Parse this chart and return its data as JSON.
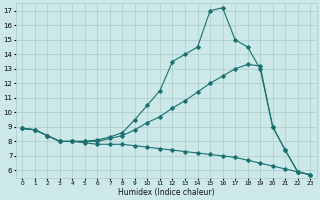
{
  "xlabel": "Humidex (Indice chaleur)",
  "bg_color": "#cce8e8",
  "grid_color": "#aacccc",
  "line_color": "#1a7070",
  "xlim": [
    -0.5,
    23.5
  ],
  "ylim": [
    5.5,
    17.5
  ],
  "xticks": [
    0,
    1,
    2,
    3,
    4,
    5,
    6,
    7,
    8,
    9,
    10,
    11,
    12,
    13,
    14,
    15,
    16,
    17,
    18,
    19,
    20,
    21,
    22,
    23
  ],
  "yticks": [
    6,
    7,
    8,
    9,
    10,
    11,
    12,
    13,
    14,
    15,
    16,
    17
  ],
  "series": [
    {
      "x": [
        0,
        1,
        2,
        3,
        4,
        5,
        6,
        7,
        8,
        9,
        10,
        11,
        12,
        13,
        14,
        15,
        16,
        17,
        18,
        19,
        20,
        21,
        22,
        23
      ],
      "y": [
        8.9,
        8.8,
        8.4,
        8.0,
        8.0,
        8.0,
        8.1,
        8.3,
        8.6,
        9.5,
        10.5,
        11.5,
        13.5,
        14.0,
        14.5,
        17.0,
        17.2,
        15.0,
        14.5,
        13.0,
        9.0,
        7.4,
        5.9,
        5.7
      ]
    },
    {
      "x": [
        0,
        1,
        2,
        3,
        4,
        5,
        6,
        7,
        8,
        9,
        10,
        11,
        12,
        13,
        14,
        15,
        16,
        17,
        18,
        19,
        20,
        21,
        22,
        23
      ],
      "y": [
        8.9,
        8.8,
        8.4,
        8.0,
        8.0,
        8.0,
        8.0,
        8.2,
        8.4,
        8.8,
        9.3,
        9.7,
        10.3,
        10.8,
        11.4,
        12.0,
        12.5,
        13.0,
        13.3,
        13.2,
        9.0,
        7.4,
        5.9,
        5.7
      ]
    },
    {
      "x": [
        0,
        1,
        2,
        3,
        4,
        5,
        6,
        7,
        8,
        9,
        10,
        11,
        12,
        13,
        14,
        15,
        16,
        17,
        18,
        19,
        20,
        21,
        22,
        23
      ],
      "y": [
        8.9,
        8.8,
        8.4,
        8.0,
        8.0,
        7.9,
        7.8,
        7.8,
        7.8,
        7.7,
        7.6,
        7.5,
        7.4,
        7.3,
        7.2,
        7.1,
        7.0,
        6.9,
        6.7,
        6.5,
        6.3,
        6.1,
        5.9,
        5.7
      ]
    }
  ]
}
